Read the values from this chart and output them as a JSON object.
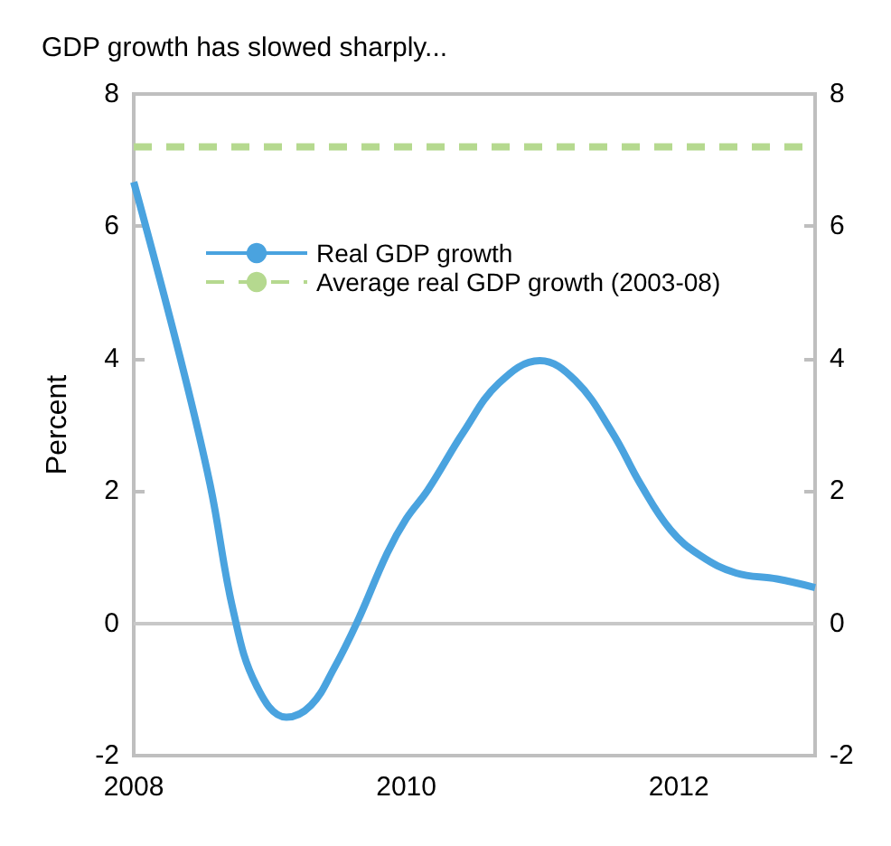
{
  "chart_data": {
    "type": "line",
    "title": "GDP growth has slowed sharply...",
    "ylabel": "Percent",
    "xlim": [
      2008,
      2013
    ],
    "xticks": [
      2008,
      2010,
      2012
    ],
    "ylim": [
      -2,
      8
    ],
    "yticks": [
      -2,
      0,
      2,
      4,
      6,
      8
    ],
    "y2lim": [
      -2,
      8
    ],
    "y2ticks": [
      -2,
      0,
      2,
      4,
      6,
      8
    ],
    "grid": false,
    "legend": "top",
    "marker": "none",
    "series": [
      {
        "name": "Real GDP growth",
        "color": "#4aa3df",
        "line_style": "solid",
        "x": [
          2008.0,
          2008.34,
          2008.56,
          2008.73,
          2008.9,
          2009.12,
          2009.3,
          2009.47,
          2009.64,
          2009.86,
          2010.0,
          2010.16,
          2010.42,
          2010.68,
          2010.98,
          2011.24,
          2011.51,
          2011.72,
          2011.94,
          2012.16,
          2012.42,
          2012.72,
          2013.0
        ],
        "values": [
          6.67,
          4.02,
          2.1,
          0.19,
          -0.94,
          -1.42,
          -1.24,
          -0.68,
          0.02,
          1.06,
          1.58,
          2.02,
          2.89,
          3.63,
          3.97,
          3.67,
          2.89,
          2.1,
          1.41,
          1.02,
          0.76,
          0.67,
          0.54
        ]
      },
      {
        "name": "Average real GDP growth (2003-08)",
        "color": "#b5d98f",
        "line_style": "dashed",
        "x": [
          2008,
          2013
        ],
        "values": [
          7.2,
          7.2
        ]
      }
    ],
    "ref_lines": [
      {
        "axis": "y",
        "value": 0,
        "label": null,
        "color": "#c8c8c8",
        "line_style": "solid"
      }
    ]
  }
}
